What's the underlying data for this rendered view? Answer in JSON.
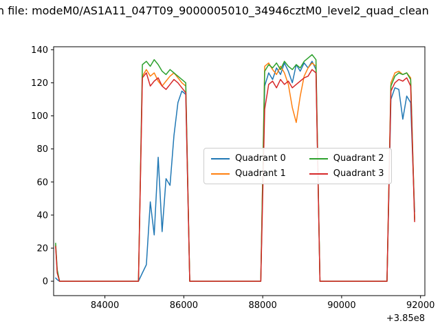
{
  "title": "n file: modeM0/AS1A11_047T09_9000005010_34946cztM0_level2_quad_clean",
  "chart_data": {
    "type": "line",
    "title": "n file: modeM0/AS1A11_047T09_9000005010_34946cztM0_level2_quad_clean",
    "xlabel": "",
    "ylabel": "",
    "x_offset_label": "+3.85e8",
    "xlim": [
      82700,
      92110
    ],
    "ylim": [
      -8.7,
      141.8
    ],
    "x_ticks": [
      84000,
      86000,
      88000,
      90000,
      92000
    ],
    "x_tick_labels": [
      "84000",
      "86000",
      "88000",
      "90000",
      "92000"
    ],
    "y_ticks": [
      0,
      20,
      40,
      60,
      80,
      100,
      120,
      140
    ],
    "y_tick_labels": [
      "0",
      "20",
      "40",
      "60",
      "80",
      "100",
      "120",
      "140"
    ],
    "grid": false,
    "legend_position": "center-right",
    "legend_columns": 2,
    "x": [
      82750,
      82790,
      82850,
      82950,
      84850,
      84950,
      85050,
      85150,
      85250,
      85350,
      85450,
      85550,
      85650,
      85750,
      85850,
      85950,
      86050,
      86150,
      87950,
      88050,
      88150,
      88250,
      88350,
      88450,
      88550,
      88650,
      88750,
      88850,
      88950,
      89050,
      89150,
      89250,
      89350,
      89450,
      91150,
      91250,
      91350,
      91450,
      91550,
      91650,
      91750,
      91850
    ],
    "series": [
      {
        "name": "Quadrant 0",
        "color": "#1f77b4",
        "values": [
          2,
          1,
          0,
          0,
          0,
          5,
          10,
          48,
          28,
          75,
          30,
          62,
          58,
          88,
          108,
          115,
          113,
          0,
          0,
          118,
          126,
          122,
          129,
          125,
          132,
          127,
          120,
          131,
          127,
          132,
          129,
          133,
          128,
          0,
          0,
          110,
          117,
          116,
          98,
          112,
          108,
          42
        ]
      },
      {
        "name": "Quadrant 1",
        "color": "#ff7f0e",
        "values": [
          22,
          6,
          0,
          0,
          0,
          124,
          128,
          124,
          126,
          121,
          118,
          121,
          124,
          126,
          123,
          120,
          118,
          0,
          0,
          130,
          132,
          128,
          125,
          130,
          126,
          119,
          105,
          96,
          112,
          124,
          129,
          132,
          130,
          0,
          0,
          120,
          126,
          127,
          125,
          126,
          123,
          38
        ]
      },
      {
        "name": "Quadrant 2",
        "color": "#2ca02c",
        "values": [
          23,
          7,
          0,
          0,
          0,
          131,
          133,
          130,
          134,
          131,
          127,
          125,
          128,
          126,
          124,
          122,
          120,
          0,
          0,
          127,
          131,
          129,
          132,
          128,
          133,
          130,
          128,
          131,
          129,
          133,
          135,
          137,
          134,
          0,
          0,
          118,
          124,
          126,
          125,
          126,
          122,
          37
        ]
      },
      {
        "name": "Quadrant 3",
        "color": "#d62728",
        "values": [
          21,
          5,
          0,
          0,
          0,
          123,
          126,
          118,
          121,
          123,
          118,
          116,
          119,
          122,
          120,
          117,
          114,
          0,
          0,
          104,
          119,
          121,
          117,
          122,
          119,
          121,
          117,
          119,
          121,
          123,
          124,
          128,
          126,
          0,
          0,
          115,
          120,
          122,
          121,
          123,
          118,
          36
        ]
      }
    ]
  }
}
